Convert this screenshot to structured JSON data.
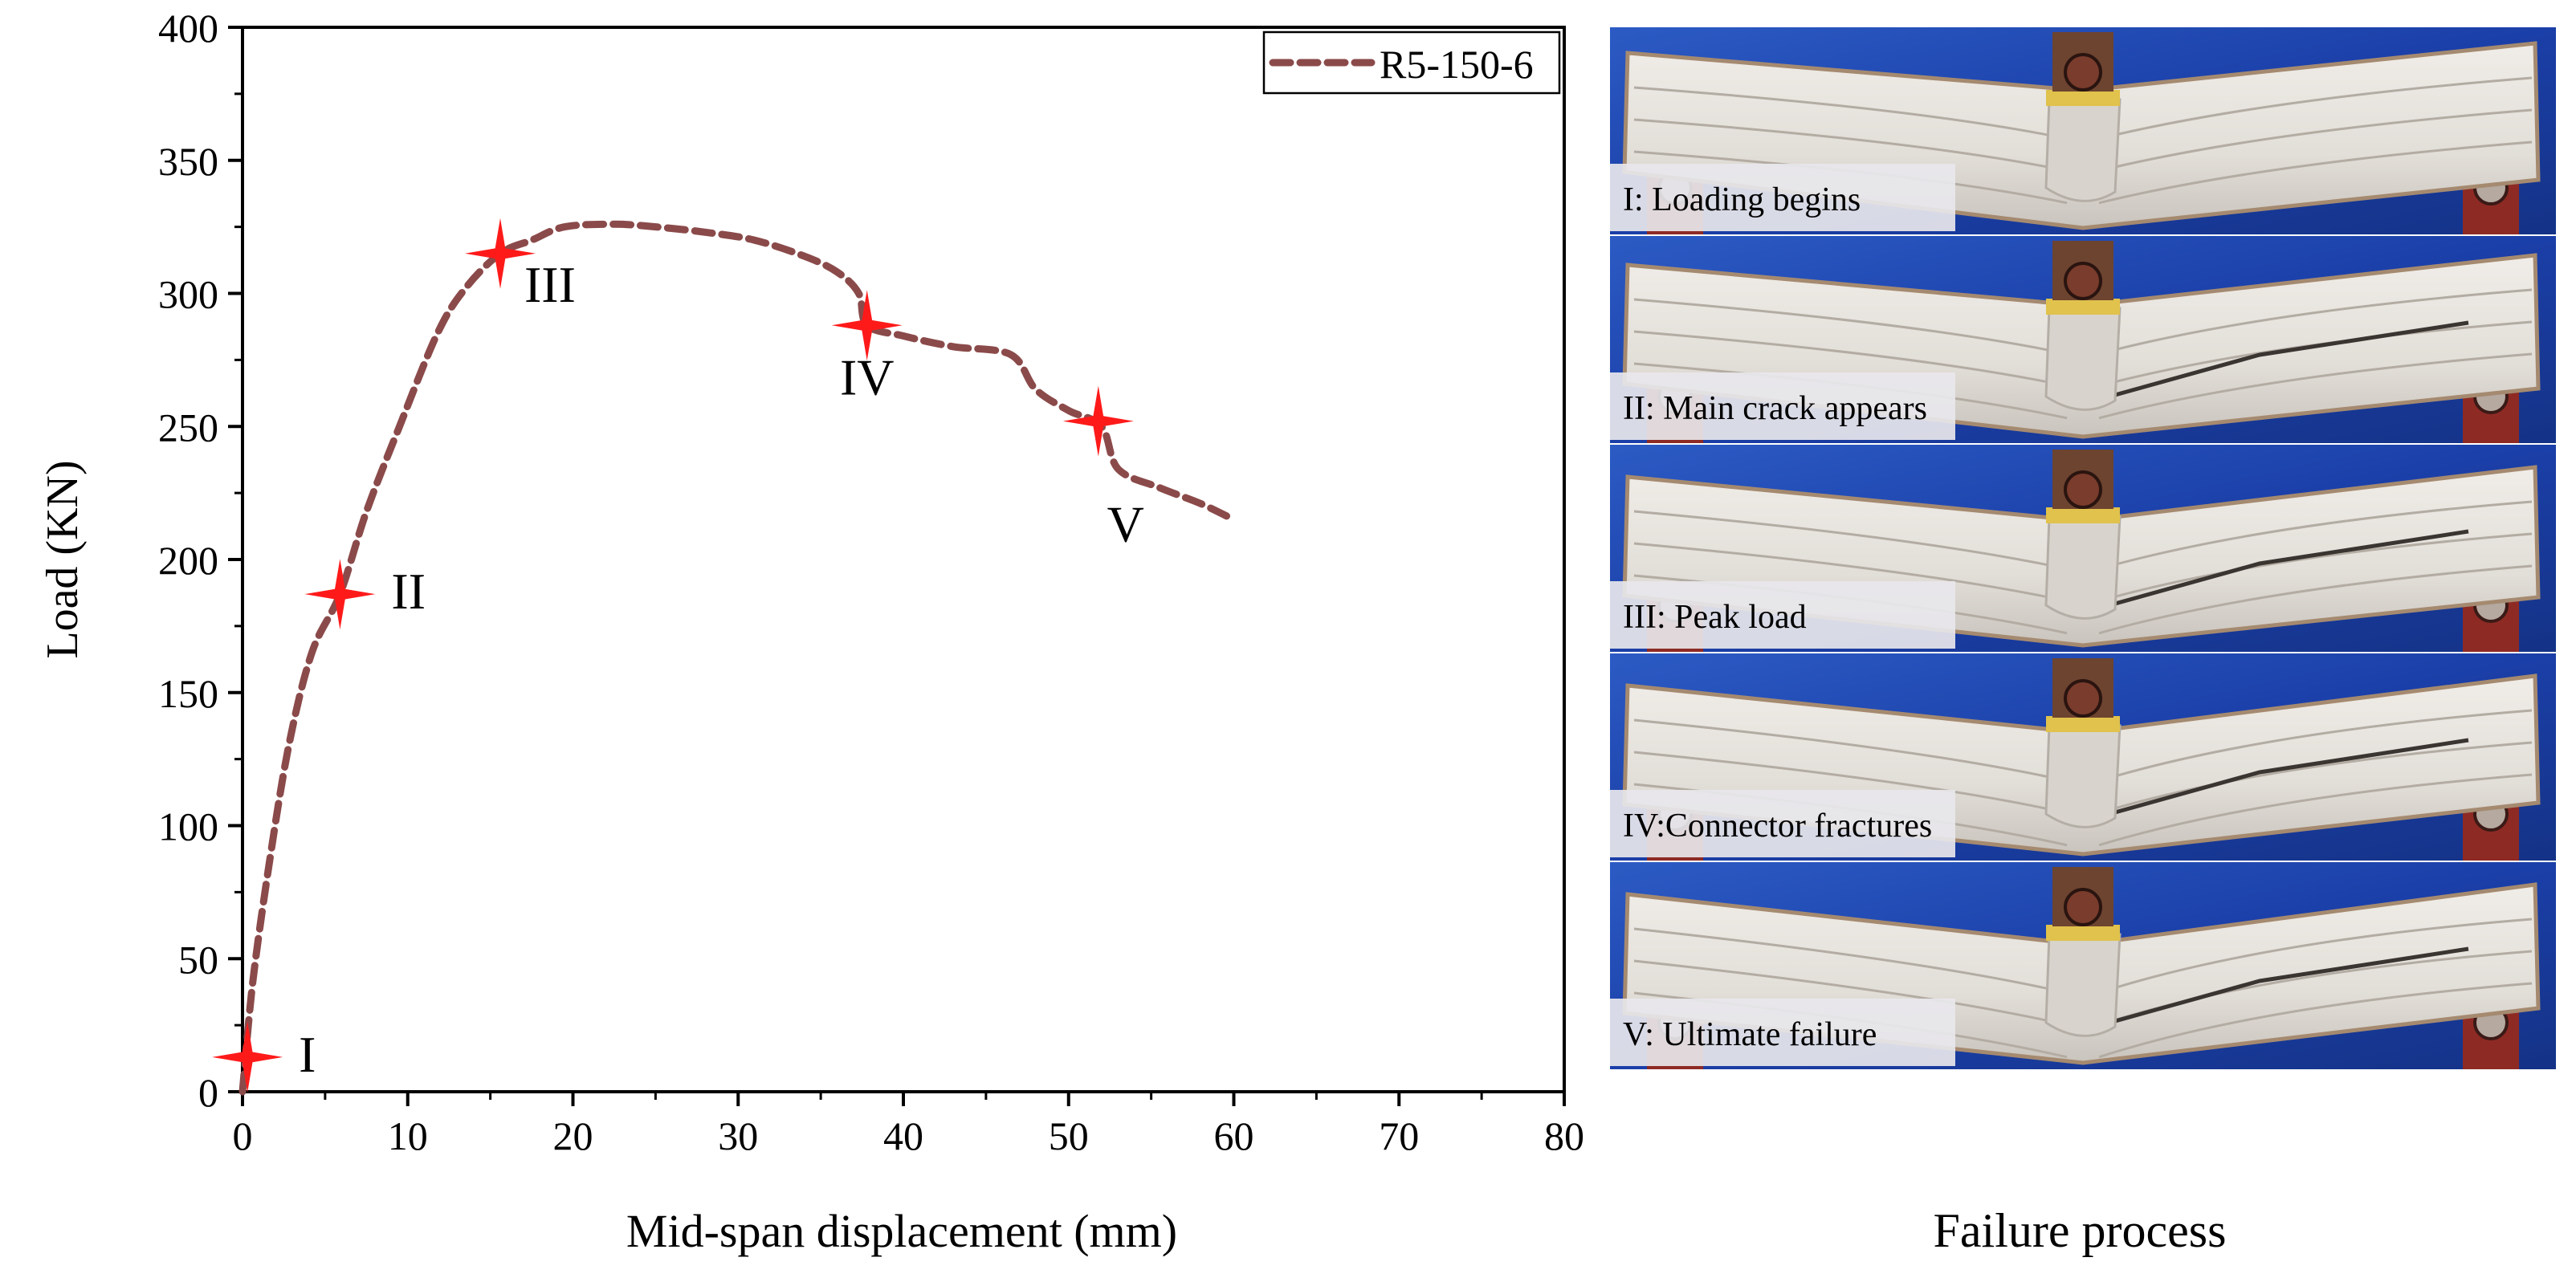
{
  "chart_data": {
    "type": "line",
    "xlabel": "Mid-span displacement (mm)",
    "ylabel": "Load (KN)",
    "xlim": [
      0,
      80
    ],
    "ylim": [
      0,
      400
    ],
    "x_ticks": [
      0,
      10,
      20,
      30,
      40,
      50,
      60,
      70,
      80
    ],
    "y_ticks": [
      0,
      50,
      100,
      150,
      200,
      250,
      300,
      350,
      400
    ],
    "grid": false,
    "legend_position": "top-right",
    "series": [
      {
        "name": "R5-150-6",
        "line_style": "dashed",
        "color": "#8b4a4a",
        "x": [
          0,
          0.6,
          1.6,
          2.8,
          4.2,
          5.9,
          7.5,
          9.5,
          11.8,
          13.5,
          15.6,
          17.5,
          19.5,
          22.5,
          25,
          28,
          31,
          34,
          36,
          37.3,
          37.8,
          40,
          43,
          46.5,
          48,
          50,
          52,
          53,
          55.5,
          58,
          60
        ],
        "y": [
          0,
          40,
          85,
          130,
          165,
          187,
          218,
          250,
          285,
          302,
          315,
          320,
          325,
          326,
          325,
          323,
          320,
          314,
          308,
          300,
          288,
          284,
          280,
          277,
          264,
          256,
          250,
          234,
          227,
          221,
          215
        ]
      }
    ],
    "markers": [
      {
        "label": "I",
        "x": 0.3,
        "y": 13,
        "color": "#ff1a1a",
        "label_side": "right"
      },
      {
        "label": "II",
        "x": 5.9,
        "y": 187,
        "color": "#ff1a1a",
        "label_side": "right"
      },
      {
        "label": "III",
        "x": 15.6,
        "y": 315,
        "color": "#ff1a1a",
        "label_side": "lower-right"
      },
      {
        "label": "IV",
        "x": 37.8,
        "y": 288,
        "color": "#ff1a1a",
        "label_side": "below"
      },
      {
        "label": "V",
        "x": 51.8,
        "y": 252,
        "color": "#ff1a1a",
        "label_side": "below-right"
      }
    ]
  },
  "failure_panel": {
    "title": "Failure process",
    "stages": [
      {
        "id": "I",
        "caption": "I: Loading begins"
      },
      {
        "id": "II",
        "caption": "II: Main crack appears"
      },
      {
        "id": "III",
        "caption": "III: Peak load"
      },
      {
        "id": "IV",
        "caption": "IV:Connector fractures"
      },
      {
        "id": "V",
        "caption": "V: Ultimate failure"
      }
    ],
    "colors": {
      "background_blue": "#1b3fa8",
      "specimen": "#e7e3dd",
      "grout": "#d8d4cd",
      "support_red": "#8e2a24",
      "loading_block": "#6d4430",
      "loading_pad_yellow": "#e0c24c",
      "caption_box": "#e8e7ec"
    }
  }
}
